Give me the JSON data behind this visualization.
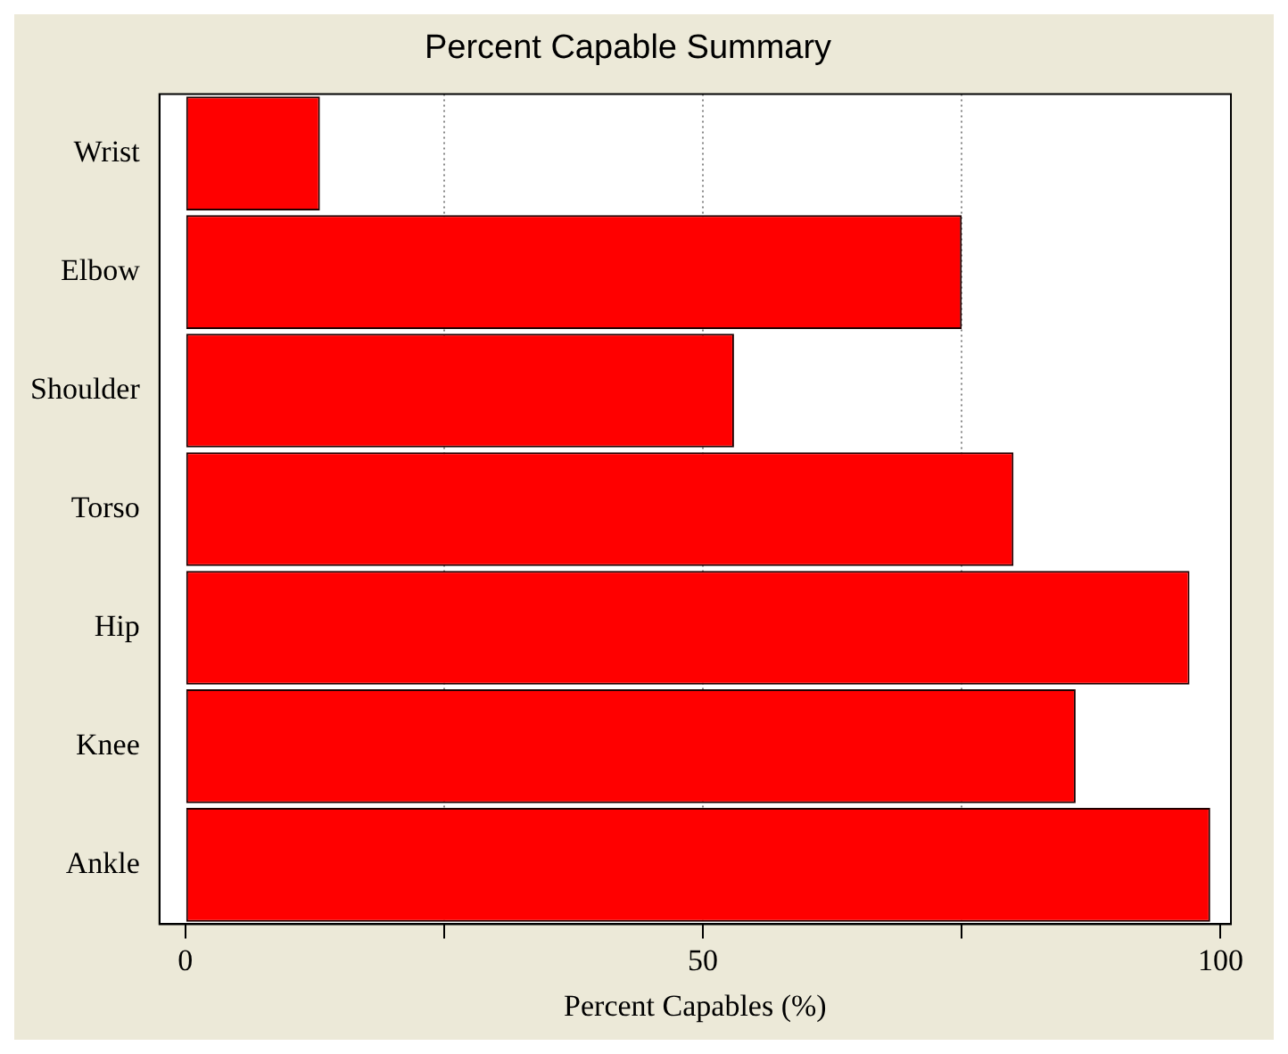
{
  "chart_data": {
    "type": "bar",
    "orientation": "horizontal",
    "title": "Percent Capable Summary",
    "xlabel": "Percent Capables (%)",
    "categories": [
      "Wrist",
      "Elbow",
      "Shoulder",
      "Torso",
      "Hip",
      "Knee",
      "Ankle"
    ],
    "values": [
      13,
      75,
      53,
      80,
      97,
      86,
      99
    ],
    "color": "#ff0000",
    "xlim": [
      -2.5,
      101
    ],
    "xticks": [
      0,
      {
        "value": 25,
        "label": null
      },
      50,
      {
        "value": 75,
        "label": null
      },
      100
    ],
    "grid": "x"
  }
}
